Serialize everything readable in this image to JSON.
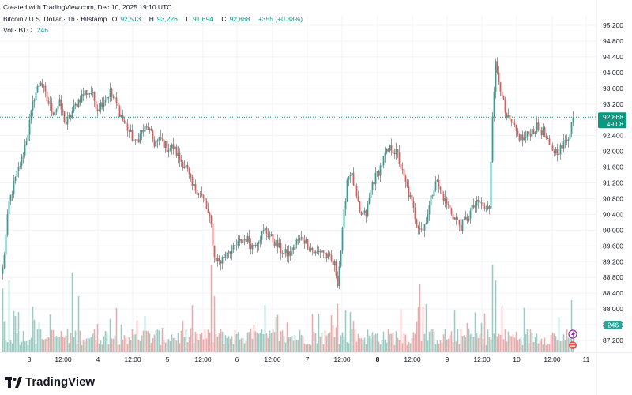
{
  "header": {
    "created": "Created with TradingView.com, Dec 10, 2025 19:10 UTC",
    "symbol": "Bitcoin / U.S. Dollar · 1h · Bitstamp",
    "o_label": "O",
    "o_value": "92,513",
    "h_label": "H",
    "h_value": "93,226",
    "l_label": "L",
    "l_value": "91,694",
    "c_label": "C",
    "c_value": "92,868",
    "change": "+355 (+0.38%)",
    "vol_label": "Vol · BTC",
    "vol_value": "246"
  },
  "price_badge": {
    "price": "92,868",
    "countdown": "49:08"
  },
  "volume_badge": "246",
  "logo_text": "TradingView",
  "colors": {
    "up": "#26a69a",
    "down": "#ef5350",
    "up_vol": "#8fd1c6",
    "down_vol": "#f5a6a6",
    "badge": "#089981"
  },
  "chart_data": {
    "type": "candlestick",
    "y_ticks": [
      "95,200",
      "94,800",
      "94,400",
      "94,000",
      "93,600",
      "93,200",
      "92,800",
      "92,400",
      "92,000",
      "91,600",
      "91,200",
      "90,800",
      "90,400",
      "90,000",
      "89,600",
      "89,200",
      "88,800",
      "88,400",
      "88,000",
      "87,600",
      "87,200"
    ],
    "ylim": [
      87000,
      95400
    ],
    "x_ticks": [
      "3",
      "12:00",
      "4",
      "12:00",
      "5",
      "12:00",
      "6",
      "12:00",
      "7",
      "12:00",
      "8",
      "12:00",
      "9",
      "12:00",
      "10",
      "12:00",
      "11"
    ],
    "last_price": 92868,
    "anchors": [
      [
        0,
        89000
      ],
      [
        4,
        90700
      ],
      [
        8,
        91300
      ],
      [
        12,
        91800
      ],
      [
        16,
        92500
      ],
      [
        20,
        93400
      ],
      [
        24,
        93800
      ],
      [
        28,
        93300
      ],
      [
        32,
        93000
      ],
      [
        36,
        93200
      ],
      [
        40,
        92700
      ],
      [
        44,
        93000
      ],
      [
        48,
        93300
      ],
      [
        52,
        93500
      ],
      [
        56,
        93500
      ],
      [
        60,
        93100
      ],
      [
        64,
        93300
      ],
      [
        68,
        93500
      ],
      [
        72,
        93200
      ],
      [
        76,
        92800
      ],
      [
        80,
        92500
      ],
      [
        84,
        92200
      ],
      [
        88,
        92500
      ],
      [
        92,
        92600
      ],
      [
        96,
        92200
      ],
      [
        100,
        92300
      ],
      [
        104,
        92100
      ],
      [
        108,
        92100
      ],
      [
        112,
        91800
      ],
      [
        116,
        91600
      ],
      [
        120,
        91100
      ],
      [
        124,
        91000
      ],
      [
        128,
        90700
      ],
      [
        132,
        90100
      ],
      [
        134,
        89300
      ],
      [
        138,
        89200
      ],
      [
        142,
        89500
      ],
      [
        146,
        89500
      ],
      [
        150,
        89700
      ],
      [
        154,
        89800
      ],
      [
        158,
        89600
      ],
      [
        162,
        89800
      ],
      [
        166,
        90000
      ],
      [
        170,
        89800
      ],
      [
        174,
        89600
      ],
      [
        178,
        89400
      ],
      [
        182,
        89400
      ],
      [
        186,
        89700
      ],
      [
        190,
        89800
      ],
      [
        194,
        89600
      ],
      [
        198,
        89400
      ],
      [
        202,
        89500
      ],
      [
        206,
        89300
      ],
      [
        210,
        89100
      ],
      [
        212,
        88700
      ],
      [
        214,
        89500
      ],
      [
        216,
        90400
      ],
      [
        218,
        91300
      ],
      [
        220,
        91500
      ],
      [
        222,
        91200
      ],
      [
        226,
        90400
      ],
      [
        230,
        90400
      ],
      [
        234,
        91200
      ],
      [
        238,
        91500
      ],
      [
        242,
        91900
      ],
      [
        246,
        92100
      ],
      [
        250,
        91900
      ],
      [
        254,
        91300
      ],
      [
        258,
        90800
      ],
      [
        262,
        90200
      ],
      [
        266,
        90000
      ],
      [
        270,
        90600
      ],
      [
        274,
        91300
      ],
      [
        278,
        90900
      ],
      [
        282,
        90600
      ],
      [
        286,
        90300
      ],
      [
        290,
        90100
      ],
      [
        294,
        90300
      ],
      [
        298,
        90600
      ],
      [
        302,
        90700
      ],
      [
        306,
        90500
      ],
      [
        308,
        90600
      ],
      [
        310,
        93000
      ],
      [
        312,
        94200
      ],
      [
        314,
        93800
      ],
      [
        316,
        93500
      ],
      [
        318,
        92900
      ],
      [
        322,
        92700
      ],
      [
        326,
        92400
      ],
      [
        330,
        92300
      ],
      [
        334,
        92500
      ],
      [
        338,
        92600
      ],
      [
        342,
        92500
      ],
      [
        346,
        92100
      ],
      [
        350,
        92000
      ],
      [
        354,
        92100
      ],
      [
        358,
        92400
      ],
      [
        361,
        92868
      ]
    ],
    "volume_spikes": [
      [
        0,
        80
      ],
      [
        4,
        90
      ],
      [
        8,
        45
      ],
      [
        10,
        50
      ],
      [
        20,
        40
      ],
      [
        44,
        100
      ],
      [
        48,
        70
      ],
      [
        60,
        35
      ],
      [
        90,
        45
      ],
      [
        132,
        120
      ],
      [
        134,
        70
      ],
      [
        212,
        60
      ],
      [
        220,
        50
      ],
      [
        264,
        85
      ],
      [
        268,
        60
      ],
      [
        310,
        110
      ],
      [
        312,
        90
      ],
      [
        360,
        65
      ]
    ]
  }
}
